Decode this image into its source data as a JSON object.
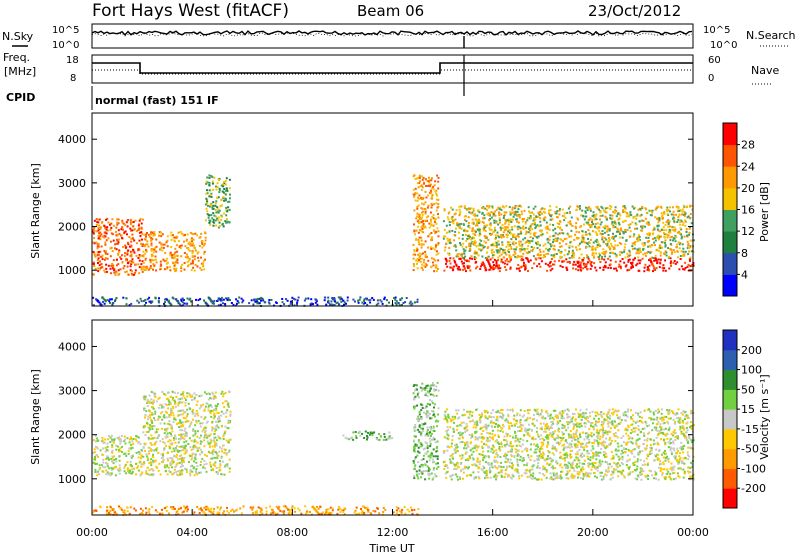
{
  "header": {
    "station": "Fort Hays West (fitACF)",
    "beam": "Beam 06",
    "date": "23/Oct/2012"
  },
  "noise_panel": {
    "left_label": "N.Sky",
    "right_label": "N.Search",
    "ticks": [
      "10^5",
      "10^0"
    ]
  },
  "freq_panel": {
    "left_label_1": "Freq.",
    "left_label_2": "[MHz]",
    "right_label": "Nave",
    "left_ticks": [
      "18",
      "8"
    ],
    "right_ticks": [
      "60",
      "0"
    ]
  },
  "cpid": {
    "label": "CPID",
    "mode": "normal (fast) 151 IF"
  },
  "colors": {
    "power": [
      "#0000ff",
      "#2a4fb0",
      "#1f7f3f",
      "#3fa060",
      "#f5c200",
      "#ff9900",
      "#ff5500",
      "#ff0000"
    ],
    "velocity": [
      "#ff0000",
      "#ff5a00",
      "#ff9a00",
      "#ffc800",
      "#c8c8c8",
      "#70d040",
      "#2f8f2f",
      "#2c5fb0",
      "#2030c0"
    ]
  },
  "chart_data": [
    {
      "type": "heatmap",
      "name": "power",
      "ylabel": "Slant Range [km]",
      "ylim": [
        180,
        4600
      ],
      "yticks": [
        1000,
        2000,
        3000,
        4000
      ],
      "colorbar": {
        "label": "Power [dB]",
        "ticks": [
          "4",
          "8",
          "12",
          "16",
          "20",
          "24",
          "28"
        ]
      },
      "echo_bands": [
        {
          "t0": 0.0,
          "t1": 2.0,
          "r0": 900,
          "r1": 2200,
          "level": 6
        },
        {
          "t0": 2.0,
          "t1": 4.5,
          "r0": 1000,
          "r1": 1900,
          "level": 5
        },
        {
          "t0": 4.5,
          "t1": 5.5,
          "r0": 2000,
          "r1": 3200,
          "level": 3
        },
        {
          "t0": 14.0,
          "t1": 24.0,
          "r0": 1000,
          "r1": 1300,
          "level": 7
        },
        {
          "t0": 14.0,
          "t1": 24.0,
          "r0": 1300,
          "r1": 2500,
          "level": 4
        },
        {
          "t0": 12.8,
          "t1": 13.8,
          "r0": 1000,
          "r1": 3200,
          "level": 5
        },
        {
          "t0": 0.0,
          "t1": 13.0,
          "r0": 200,
          "r1": 400,
          "level": 1
        }
      ]
    },
    {
      "type": "heatmap",
      "name": "velocity",
      "ylabel": "Slant Range [km]",
      "xlabel": "Time UT",
      "ylim": [
        180,
        4600
      ],
      "yticks": [
        1000,
        2000,
        3000,
        4000
      ],
      "xticks": [
        "00:00",
        "04:00",
        "08:00",
        "12:00",
        "16:00",
        "20:00",
        "00:00"
      ],
      "colorbar": {
        "label": "Velocity [m s⁻¹]",
        "ticks": [
          "200",
          "100",
          "50",
          "15",
          "-15",
          "-50",
          "-100",
          "-200"
        ]
      },
      "echo_bands": [
        {
          "t0": 0.0,
          "t1": 2.0,
          "r0": 1100,
          "r1": 2000,
          "level": 4
        },
        {
          "t0": 2.0,
          "t1": 5.5,
          "r0": 1100,
          "r1": 3000,
          "level": 4
        },
        {
          "t0": 14.0,
          "t1": 24.0,
          "r0": 1000,
          "r1": 2600,
          "level": 4
        },
        {
          "t0": 12.8,
          "t1": 13.8,
          "r0": 1000,
          "r1": 3200,
          "level": 5
        },
        {
          "t0": 10.0,
          "t1": 12.0,
          "r0": 1900,
          "r1": 2100,
          "level": 5
        },
        {
          "t0": 0.0,
          "t1": 13.0,
          "r0": 200,
          "r1": 400,
          "level": 2
        }
      ]
    }
  ]
}
